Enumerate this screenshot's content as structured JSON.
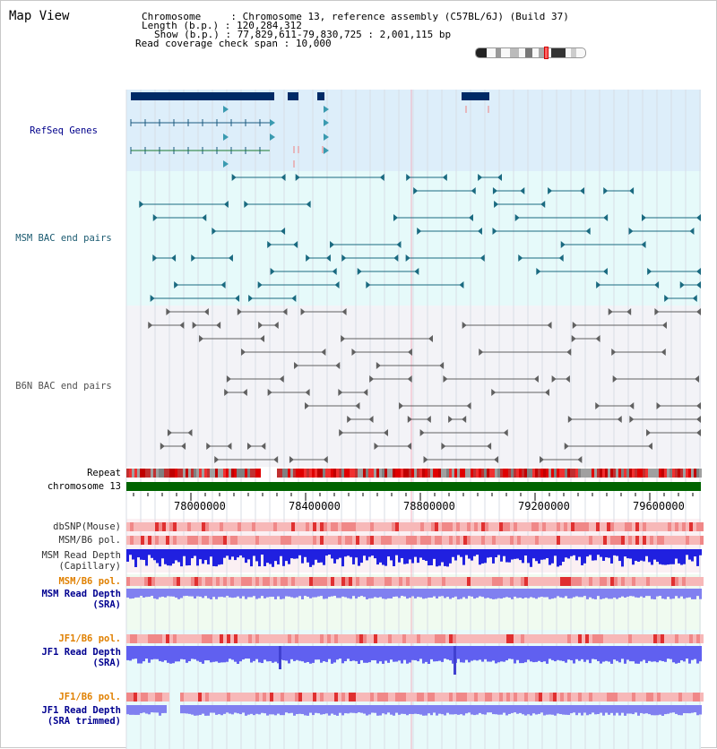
{
  "view": {
    "title": "Map View",
    "chromosome_key": "Chromosome",
    "chromosome_val": "Chromosome 13, reference assembly (C57BL/6J) (Build 37)",
    "length_key": "Length (b.p.)",
    "length_val": "120,284,312",
    "show_key": "Show (b.p.)",
    "show_val": "77,829,611-79,830,725 : 2,001,115 bp",
    "span_key": "Read coverage check span",
    "span_val": "10,000"
  },
  "tracks": {
    "refseq": "RefSeq Genes",
    "msm_bac": "MSM BAC end pairs",
    "b6n_bac": "B6N BAC end pairs",
    "repeat": "Repeat",
    "chromosome": "chromosome 13",
    "dbsnp": "dbSNP(Mouse)",
    "msm_b6_pol": "MSM/B6 pol.",
    "msm_depth_cap_1": "MSM Read Depth",
    "msm_depth_cap_2": "(Capillary)",
    "msm_b6_pol_sra": "MSM/B6 pol.",
    "msm_depth_sra_1": "MSM Read Depth",
    "msm_depth_sra_2": "(SRA)",
    "jf1_b6_pol": "JF1/B6 pol.",
    "jf1_depth_1": "JF1 Read Depth",
    "jf1_depth_2": "(SRA)",
    "jf1_b6_pol_trim": "JF1/B6 pol.",
    "jf1_depth_trim_1": "JF1 Read Depth",
    "jf1_depth_trim_2": "(SRA trimmed)"
  },
  "ruler": {
    "ticks": [
      "78000000",
      "78400000",
      "78800000",
      "79200000",
      "79600000"
    ]
  },
  "colors": {
    "refseq_bg": "#e0f0fa",
    "msm_bg": "#e6fafa",
    "b6n_bg": "#f4f4f8",
    "gene": "#002a66",
    "msm_feature": "#1a6a80",
    "b6n_feature": "#606060",
    "chromosome": "#006400",
    "snp": "#f08080",
    "depth": "#2020e0",
    "depth_light": "#8080f0",
    "orange_label": "#e08000",
    "navy_label": "#000090"
  }
}
